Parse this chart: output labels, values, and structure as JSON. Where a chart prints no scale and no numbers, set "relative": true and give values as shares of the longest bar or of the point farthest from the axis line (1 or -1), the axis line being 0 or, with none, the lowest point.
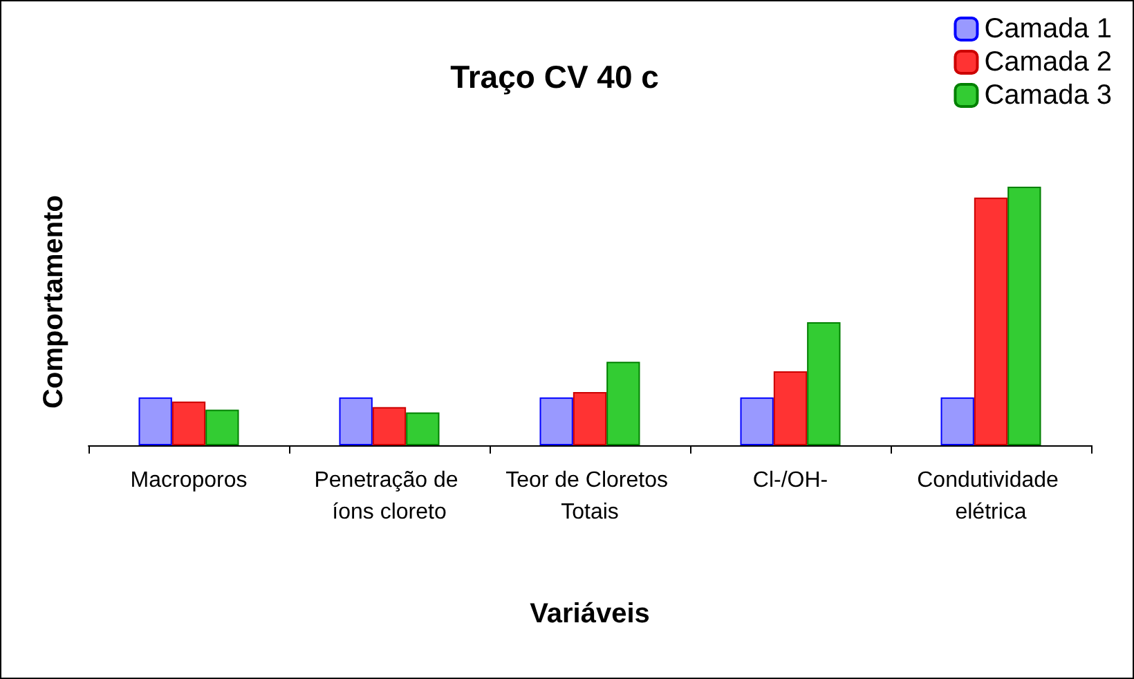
{
  "chart_data": {
    "type": "bar",
    "title": "Traço CV 40 c",
    "xlabel": "Variáveis",
    "ylabel": "Comportamento",
    "relative": true,
    "legend": "top right",
    "categories": [
      "Macroporos",
      "Penetração de íons cloreto",
      "Teor de Cloretos Totais",
      "Cl-/OH-",
      "Condutividade elétrica"
    ],
    "series": [
      {
        "name": "Camada 1",
        "color": "#9999ff",
        "values": [
          0.185,
          0.185,
          0.185,
          0.185,
          0.185
        ]
      },
      {
        "name": "Camada 2",
        "color": "#ff3333",
        "values": [
          0.169,
          0.148,
          0.206,
          0.286,
          0.958
        ]
      },
      {
        "name": "Camada 3",
        "color": "#33cc33",
        "values": [
          0.138,
          0.127,
          0.323,
          0.476,
          1
        ]
      }
    ]
  }
}
